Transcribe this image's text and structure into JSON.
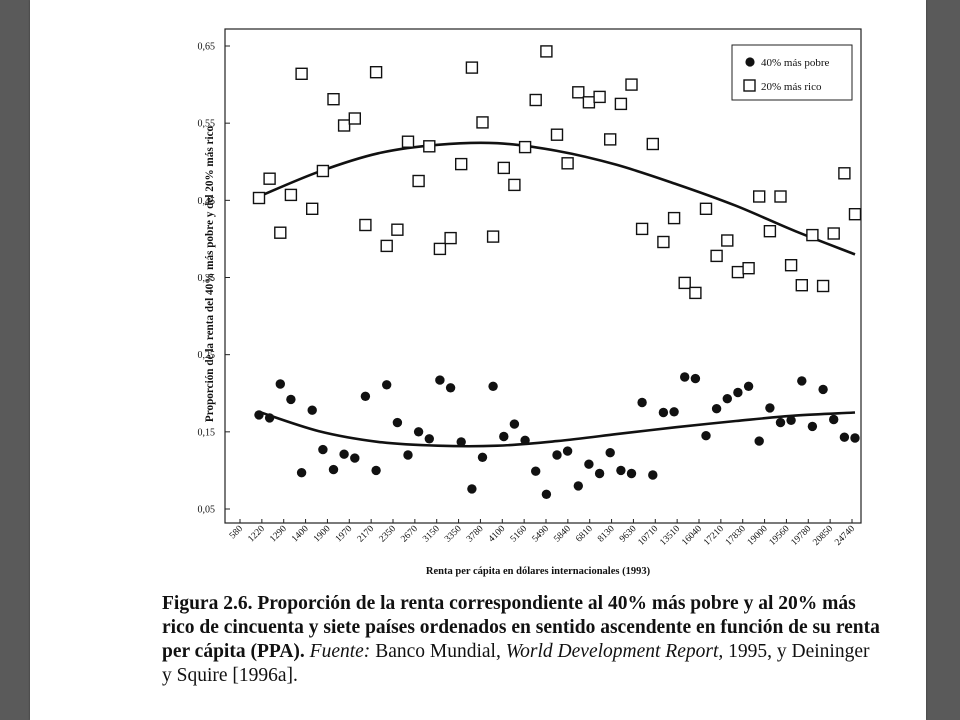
{
  "chart_data": {
    "type": "scatter",
    "ylabel": "Proporción de la renta del 40% más pobre y del 20% más rico",
    "xlabel": "Renta per cápita en dólares internacionales (1993)",
    "yticks": [
      "0,65",
      "0,55",
      "0,45",
      "0,35",
      "0,25",
      "0,15",
      "0,05"
    ],
    "ylim": [
      0.05,
      0.65
    ],
    "xticks": [
      "580",
      "1220",
      "1290",
      "1400",
      "1900",
      "1970",
      "2170",
      "2350",
      "2670",
      "3150",
      "3350",
      "3780",
      "4100",
      "5160",
      "5490",
      "5840",
      "6810",
      "8130",
      "9630",
      "10710",
      "13510",
      "16040",
      "17210",
      "17830",
      "19000",
      "19560",
      "19780",
      "20850",
      "24740"
    ],
    "legend_position": "top-right",
    "series": [
      {
        "name": "40% más pobre",
        "marker": "filled-circle",
        "values": [
          0.172,
          0.168,
          0.212,
          0.192,
          0.097,
          0.178,
          0.127,
          0.101,
          0.121,
          0.116,
          0.196,
          0.1,
          0.211,
          0.162,
          0.12,
          0.15,
          0.141,
          0.217,
          0.207,
          0.137,
          0.076,
          0.117,
          0.209,
          0.144,
          0.16,
          0.139,
          0.099,
          0.069,
          0.12,
          0.125,
          0.08,
          0.108,
          0.096,
          0.123,
          0.1,
          0.096,
          0.188,
          0.094,
          0.175,
          0.176,
          0.221,
          0.219,
          0.145,
          0.18,
          0.193,
          0.201,
          0.209,
          0.138,
          0.181,
          0.162,
          0.165,
          0.216,
          0.157,
          0.205,
          0.166,
          0.143,
          0.142
        ]
      },
      {
        "name": "20% más rico",
        "marker": "open-square",
        "values": [
          0.453,
          0.478,
          0.408,
          0.457,
          0.614,
          0.439,
          0.488,
          0.581,
          0.547,
          0.556,
          0.418,
          0.616,
          0.391,
          0.412,
          0.526,
          0.475,
          0.52,
          0.387,
          0.401,
          0.497,
          0.622,
          0.551,
          0.403,
          0.492,
          0.47,
          0.519,
          0.58,
          0.643,
          0.535,
          0.498,
          0.59,
          0.577,
          0.584,
          0.529,
          0.575,
          0.6,
          0.413,
          0.523,
          0.396,
          0.427,
          0.343,
          0.33,
          0.439,
          0.378,
          0.398,
          0.357,
          0.362,
          0.455,
          0.41,
          0.455,
          0.366,
          0.34,
          0.405,
          0.339,
          0.407,
          0.485,
          0.432
        ]
      }
    ],
    "trend_rich": [
      0.455,
      0.487,
      0.511,
      0.522,
      0.524,
      0.514,
      0.496,
      0.471,
      0.443,
      0.41,
      0.38
    ],
    "trend_poor": [
      0.176,
      0.151,
      0.137,
      0.132,
      0.132,
      0.138,
      0.147,
      0.156,
      0.164,
      0.171,
      0.175
    ]
  },
  "caption": {
    "label": "Figura 2.6.",
    "text_bold": " Proporción de la renta correspondiente al 40% más pobre y al 20% más rico de cincuenta y siete países ordenados en sentido ascendente en función de su renta per cápita (PPA).",
    "fuente_label": "Fuente:",
    "text_1": " Banco Mundial, ",
    "report": "World Development Report,",
    "text_2": " 1995, y Deininger y Squire [1996a]."
  }
}
